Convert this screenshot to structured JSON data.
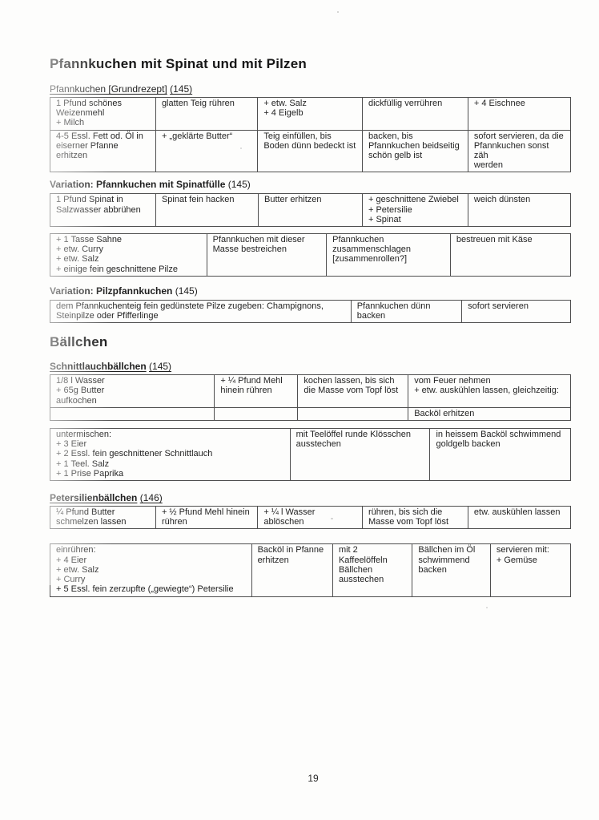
{
  "colors": {
    "paper": "#fdfdfc",
    "ink": "#262626",
    "border": "#4f4f4f"
  },
  "page_number": "19",
  "blocks": [
    {
      "type": "title",
      "mt": 0,
      "text": "Pfannkuchen mit Spinat und mit Pilzen"
    },
    {
      "type": "label",
      "mt": 14,
      "bold": false,
      "underline": true,
      "text": "Pfannkuchen [Grundrezept]",
      "ref": "(145)"
    },
    {
      "type": "table",
      "mt": 2,
      "cols": [
        20.3,
        19.6,
        20.1,
        20.3,
        19.7
      ],
      "rows": [
        [
          "1 Pfund schönes\nWeizenmehl\n+ Milch",
          "glatten Teig rühren",
          "+ etw. Salz\n+ 4 Eigelb",
          "dickfüllig verrühren",
          "+ 4 Eischnee"
        ],
        [
          "4-5 Essl. Fett od. Öl in\neiserner Pfanne\nerhitzen",
          "+ „geklärte Butter“",
          "Teig einfüllen, bis\nBoden dünn bedeckt ist",
          "backen, bis\nPfannkuchen beidseitig\nschön gelb ist",
          "sofort servieren, da die\nPfannkuchen sonst zäh\nwerden"
        ]
      ]
    },
    {
      "type": "label",
      "mt": 8,
      "bold": true,
      "underline": false,
      "text": "Variation: Pfannkuchen mit Spinatfülle",
      "ref": "(145)"
    },
    {
      "type": "table",
      "mt": 3,
      "cols": [
        20.3,
        19.7,
        20.0,
        20.3,
        19.7
      ],
      "rows": [
        [
          "1 Pfund Spinat in\nSalzwasser abbrühen",
          "Spinat fein hacken",
          "Butter erhitzen",
          "+ geschnittene Zwiebel\n+ Petersilie\n+ Spinat",
          "weich dünsten"
        ]
      ]
    },
    {
      "type": "table",
      "mt": 8,
      "cols": [
        30.1,
        23.0,
        23.8,
        23.1
      ],
      "rows": [
        [
          "+ 1 Tasse Sahne\n+ etw. Curry\n+ etw. Salz\n+ einige fein geschnittene Pilze",
          "Pfannkuchen mit dieser\nMasse bestreichen",
          "Pfannkuchen\nzusammenschlagen\n[zusammenrollen?]",
          "bestreuen mit Käse"
        ]
      ]
    },
    {
      "type": "label",
      "mt": 11,
      "bold": true,
      "underline": false,
      "text": "Variation: Pilzpfannkuchen",
      "ref": "(145)"
    },
    {
      "type": "table",
      "mt": 3,
      "cols": [
        57.8,
        21.3,
        20.9
      ],
      "rows": [
        [
          "dem Pfannkuchenteig fein gedünstete Pilze zugeben: Champignons,\nSteinpilze oder Pfifferlinge",
          "Pfannkuchen dünn\nbacken",
          "sofort servieren"
        ]
      ]
    },
    {
      "type": "heading",
      "mt": 14,
      "text": "Bällchen"
    },
    {
      "type": "label",
      "mt": 13,
      "bold": true,
      "underline": true,
      "text": "Schnittlauchbällchen",
      "ref": "(145)"
    },
    {
      "type": "table",
      "mt": 2,
      "cols": [
        31.6,
        16.0,
        21.2,
        31.2
      ],
      "rows": [
        [
          "1/8 l Wasser\n+ 65g Butter\naufkochen",
          "+ ¼ Pfund Mehl\nhinein rühren",
          "kochen lassen, bis sich\ndie Masse vom Topf löst",
          "vom Feuer nehmen\n+ etw. auskühlen lassen, gleichzeitig:"
        ],
        [
          "",
          "",
          "",
          "Backöl erhitzen"
        ]
      ]
    },
    {
      "type": "table",
      "mt": 9,
      "cols": [
        46.1,
        26.9,
        27.0
      ],
      "rows": [
        [
          "untermischen:\n+ 3 Eier\n+ 2 Essl. fein geschnittener Schnittlauch\n+ 1 Teel. Salz\n+ 1 Prise Paprika",
          "mit Teelöffel runde Klösschen\nausstechen",
          "in heissem Backöl schwimmend\ngoldgelb backen"
        ]
      ]
    },
    {
      "type": "label",
      "mt": 14,
      "bold": true,
      "underline": true,
      "text": "Petersilienbällchen",
      "ref": "(146)"
    },
    {
      "type": "table",
      "mt": 2,
      "cols": [
        20.3,
        19.6,
        20.1,
        20.3,
        19.7
      ],
      "rows": [
        [
          "¼ Pfund Butter\nschmelzen lassen",
          "+ ½ Pfund Mehl hinein\nrühren",
          "+ ¼ l Wasser\nablöschen",
          "rühren, bis sich die\nMasse vom Topf löst",
          "etw. auskühlen lassen"
        ]
      ]
    },
    {
      "type": "table",
      "mt": 18,
      "cols": [
        38.7,
        15.6,
        15.3,
        15.0,
        15.4
      ],
      "rows": [
        [
          "einrühren:\n+ 4 Eier\n+ etw. Salz\n+ Curry\n+ 5 Essl. fein zerzupfte („gewiegte“) Petersilie",
          "Backöl in Pfanne\nerhitzen",
          "mit 2\nKaffeelöffeln\nBällchen\nausstechen",
          "Bällchen im Öl\nschwimmend\nbacken",
          "servieren mit:\n+ Gemüse"
        ]
      ]
    }
  ]
}
